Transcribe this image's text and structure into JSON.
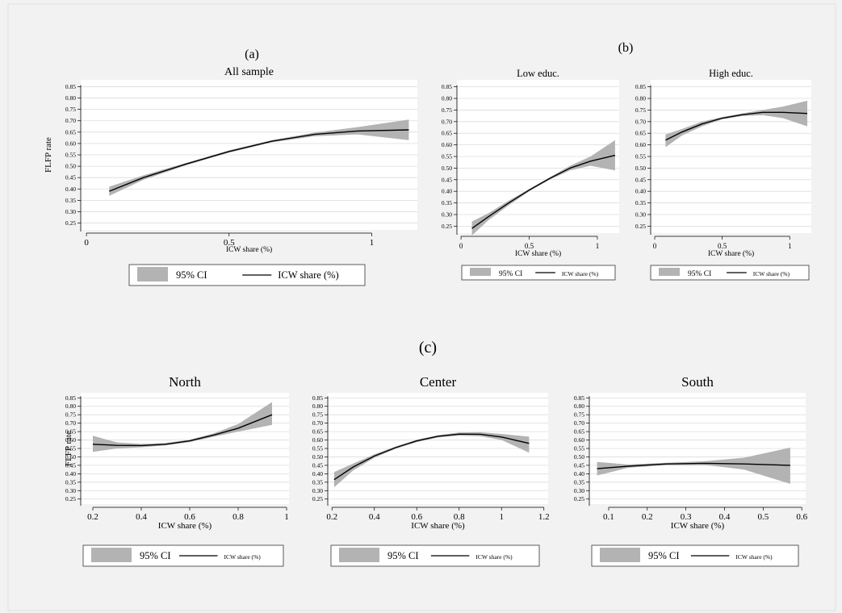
{
  "figure": {
    "panel_a_label": "(a)",
    "panel_b_label": "(b)",
    "panel_c_label": "(c)"
  },
  "legend": {
    "ci_label": "95% CI",
    "line_label": "ICW share (%)"
  },
  "colors": {
    "background": "#f2f2f2",
    "plot_bg": "#ffffff",
    "ci_band": "#b3b3b3",
    "line": "#000000",
    "grid": "#dcdcdc"
  },
  "chart_data": [
    {
      "type": "line",
      "title": "All sample",
      "xlabel": "ICW share (%)",
      "ylabel": "FLFP rate",
      "xlim": [
        -0.02,
        1.16
      ],
      "ylim": [
        0.22,
        0.88
      ],
      "xticks": [
        "0",
        "0.5",
        "1"
      ],
      "yticks": [
        "0.25",
        "0.30",
        "0.35",
        "0.40",
        "0.45",
        "0.50",
        "0.55",
        "0.60",
        "0.65",
        "0.70",
        "0.75",
        "0.80",
        "0.85"
      ],
      "series": [
        {
          "name": "ICW share (%)",
          "x": [
            0.08,
            0.2,
            0.35,
            0.5,
            0.65,
            0.8,
            0.95,
            1.13
          ],
          "y": [
            0.39,
            0.45,
            0.51,
            0.565,
            0.61,
            0.64,
            0.655,
            0.66
          ]
        },
        {
          "name": "95% CI",
          "x": [
            0.08,
            0.2,
            0.35,
            0.5,
            0.65,
            0.8,
            0.95,
            1.13
          ],
          "lower": [
            0.37,
            0.44,
            0.505,
            0.56,
            0.605,
            0.632,
            0.64,
            0.615
          ],
          "upper": [
            0.41,
            0.46,
            0.515,
            0.57,
            0.615,
            0.648,
            0.672,
            0.705
          ]
        }
      ],
      "grid": true
    },
    {
      "type": "line",
      "title": "Low educ.",
      "xlabel": "ICW share (%)",
      "ylabel": "",
      "xlim": [
        -0.03,
        1.16
      ],
      "ylim": [
        0.22,
        0.88
      ],
      "xticks": [
        "0",
        "0.5",
        "1"
      ],
      "yticks": [
        "0.25",
        "0.30",
        "0.35",
        "0.40",
        "0.45",
        "0.50",
        "0.55",
        "0.60",
        "0.65",
        "0.70",
        "0.75",
        "0.80",
        "0.85"
      ],
      "series": [
        {
          "name": "ICW share (%)",
          "x": [
            0.08,
            0.2,
            0.35,
            0.5,
            0.65,
            0.8,
            0.95,
            1.13
          ],
          "y": [
            0.24,
            0.29,
            0.35,
            0.405,
            0.455,
            0.5,
            0.53,
            0.555
          ]
        },
        {
          "name": "95% CI",
          "x": [
            0.08,
            0.2,
            0.35,
            0.5,
            0.65,
            0.8,
            0.95,
            1.13
          ],
          "lower": [
            0.21,
            0.275,
            0.34,
            0.4,
            0.45,
            0.49,
            0.51,
            0.49
          ],
          "upper": [
            0.27,
            0.305,
            0.36,
            0.41,
            0.46,
            0.51,
            0.55,
            0.62
          ]
        }
      ],
      "grid": true
    },
    {
      "type": "line",
      "title": "High educ.",
      "xlabel": "ICW share (%)",
      "ylabel": "",
      "xlim": [
        -0.03,
        1.16
      ],
      "ylim": [
        0.22,
        0.88
      ],
      "xticks": [
        "0",
        "0.5",
        "1"
      ],
      "yticks": [
        "0.25",
        "0.30",
        "0.35",
        "0.40",
        "0.45",
        "0.50",
        "0.55",
        "0.60",
        "0.65",
        "0.70",
        "0.75",
        "0.80",
        "0.85"
      ],
      "series": [
        {
          "name": "ICW share (%)",
          "x": [
            0.08,
            0.2,
            0.35,
            0.5,
            0.65,
            0.8,
            0.95,
            1.13
          ],
          "y": [
            0.62,
            0.655,
            0.69,
            0.715,
            0.73,
            0.74,
            0.74,
            0.735
          ]
        },
        {
          "name": "95% CI",
          "x": [
            0.08,
            0.2,
            0.35,
            0.5,
            0.65,
            0.8,
            0.95,
            1.13
          ],
          "lower": [
            0.59,
            0.64,
            0.68,
            0.71,
            0.724,
            0.728,
            0.715,
            0.68
          ],
          "upper": [
            0.645,
            0.668,
            0.7,
            0.72,
            0.736,
            0.75,
            0.765,
            0.79
          ]
        }
      ],
      "grid": true
    },
    {
      "type": "line",
      "title": "North",
      "xlabel": "ICW share (%)",
      "ylabel": "FLFP rate",
      "xlim": [
        0.15,
        1.01
      ],
      "ylim": [
        0.22,
        0.88
      ],
      "xticks": [
        "0.2",
        "0.4",
        "0.6",
        "0.8",
        "1"
      ],
      "yticks": [
        "0.25",
        "0.30",
        "0.35",
        "0.40",
        "0.45",
        "0.50",
        "0.55",
        "0.60",
        "0.65",
        "0.70",
        "0.75",
        "0.80",
        "0.85"
      ],
      "series": [
        {
          "name": "ICW share (%)",
          "x": [
            0.2,
            0.3,
            0.4,
            0.5,
            0.6,
            0.7,
            0.8,
            0.94
          ],
          "y": [
            0.575,
            0.568,
            0.567,
            0.575,
            0.595,
            0.63,
            0.67,
            0.75
          ]
        },
        {
          "name": "95% CI",
          "x": [
            0.2,
            0.3,
            0.4,
            0.5,
            0.6,
            0.7,
            0.8,
            0.94
          ],
          "lower": [
            0.53,
            0.55,
            0.557,
            0.568,
            0.588,
            0.62,
            0.65,
            0.69
          ],
          "upper": [
            0.625,
            0.586,
            0.577,
            0.582,
            0.602,
            0.64,
            0.695,
            0.825
          ]
        }
      ],
      "grid": true
    },
    {
      "type": "line",
      "title": "Center",
      "xlabel": "ICW share (%)",
      "ylabel": "",
      "xlim": [
        0.18,
        1.22
      ],
      "ylim": [
        0.22,
        0.88
      ],
      "xticks": [
        "0.2",
        "0.4",
        "0.6",
        "0.8",
        "1",
        "1.2"
      ],
      "yticks": [
        "0.25",
        "0.30",
        "0.35",
        "0.40",
        "0.45",
        "0.50",
        "0.55",
        "0.60",
        "0.65",
        "0.70",
        "0.75",
        "0.80",
        "0.85"
      ],
      "series": [
        {
          "name": "ICW share (%)",
          "x": [
            0.21,
            0.3,
            0.4,
            0.5,
            0.6,
            0.7,
            0.8,
            0.9,
            1.0,
            1.13
          ],
          "y": [
            0.365,
            0.44,
            0.505,
            0.555,
            0.595,
            0.622,
            0.635,
            0.634,
            0.618,
            0.58
          ]
        },
        {
          "name": "95% CI",
          "x": [
            0.21,
            0.3,
            0.4,
            0.5,
            0.6,
            0.7,
            0.8,
            0.9,
            1.0,
            1.13
          ],
          "lower": [
            0.32,
            0.42,
            0.495,
            0.548,
            0.588,
            0.615,
            0.626,
            0.622,
            0.6,
            0.525
          ],
          "upper": [
            0.41,
            0.46,
            0.515,
            0.562,
            0.602,
            0.629,
            0.644,
            0.646,
            0.636,
            0.62
          ]
        }
      ],
      "grid": true
    },
    {
      "type": "line",
      "title": "South",
      "xlabel": "ICW share (%)",
      "ylabel": "",
      "xlim": [
        0.05,
        0.61
      ],
      "ylim": [
        0.22,
        0.88
      ],
      "xticks": [
        "0.1",
        "0.2",
        "0.3",
        "0.4",
        "0.5",
        "0.6"
      ],
      "yticks": [
        "0.25",
        "0.30",
        "0.35",
        "0.40",
        "0.45",
        "0.50",
        "0.55",
        "0.60",
        "0.65",
        "0.70",
        "0.75",
        "0.80",
        "0.85"
      ],
      "series": [
        {
          "name": "ICW share (%)",
          "x": [
            0.07,
            0.15,
            0.25,
            0.35,
            0.45,
            0.57
          ],
          "y": [
            0.43,
            0.445,
            0.458,
            0.462,
            0.458,
            0.45
          ]
        },
        {
          "name": "95% CI",
          "x": [
            0.07,
            0.15,
            0.25,
            0.35,
            0.45,
            0.57
          ],
          "lower": [
            0.39,
            0.435,
            0.452,
            0.452,
            0.425,
            0.34
          ],
          "upper": [
            0.47,
            0.455,
            0.465,
            0.475,
            0.495,
            0.555
          ]
        }
      ],
      "grid": true
    }
  ]
}
